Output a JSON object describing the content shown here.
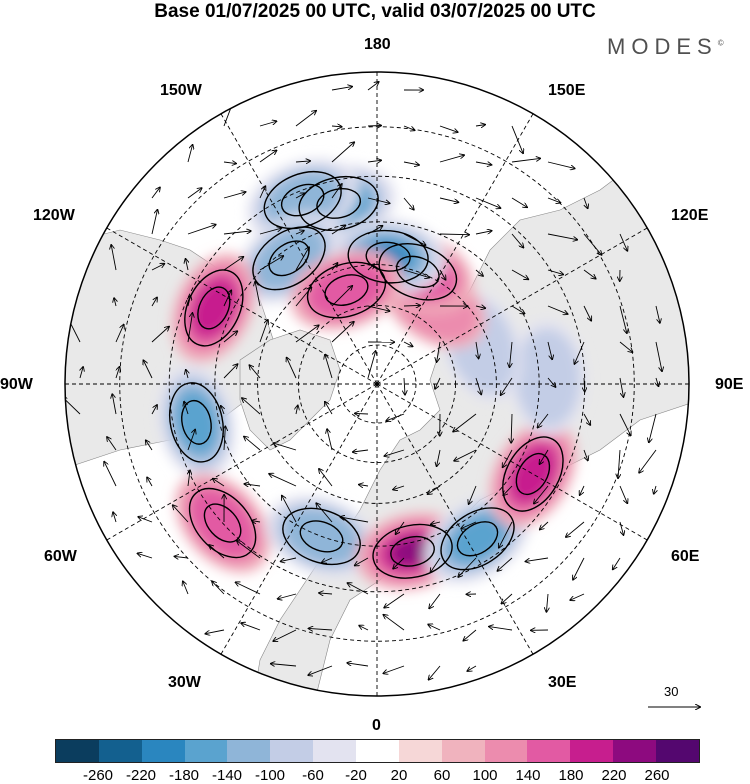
{
  "title": "Base 01/07/2025 00 UTC, valid 03/07/2025 00 UTC",
  "brand": "MODES",
  "brand_mark": "©",
  "longitude_labels": {
    "lon_180": "180",
    "lon_150e": "150E",
    "lon_120e": "120E",
    "lon_90e": "90E",
    "lon_60e": "60E",
    "lon_30e": "30E",
    "lon_0": "0",
    "lon_30w": "30W",
    "lon_60w": "60W",
    "lon_90w": "90W",
    "lon_120w": "120W",
    "lon_150w": "150W"
  },
  "reference_vector_label": "30",
  "colorbar": {
    "colors": [
      "#0b3d5e",
      "#13608f",
      "#2a86bf",
      "#5aa3cf",
      "#8fb5d8",
      "#c3cde6",
      "#e3e3f0",
      "#ffffff",
      "#f6d7d7",
      "#f0b3be",
      "#ec8cae",
      "#e25aa3",
      "#c71e8e",
      "#8d0a7f",
      "#54076f"
    ],
    "ticks": [
      "-260",
      "-220",
      "-180",
      "-140",
      "-100",
      "-60",
      "-20",
      "20",
      "60",
      "100",
      "140",
      "180",
      "220",
      "260"
    ]
  },
  "anomaly_centers": [
    {
      "lon": -168,
      "lat": 45,
      "value": -180
    },
    {
      "lon": -158,
      "lat": 42,
      "value": -140
    },
    {
      "lon": -145,
      "lat": 52,
      "value": -140
    },
    {
      "lon": -115,
      "lat": 46,
      "value": 180
    },
    {
      "lon": -78,
      "lat": 45,
      "value": -180
    },
    {
      "lon": -48,
      "lat": 40,
      "value": 140
    },
    {
      "lon": -20,
      "lat": 50,
      "value": -140
    },
    {
      "lon": 12,
      "lat": 48,
      "value": 220
    },
    {
      "lon": 33,
      "lat": 45,
      "value": -180
    },
    {
      "lon": 60,
      "lat": 46,
      "value": 180
    },
    {
      "lon": 92,
      "lat": 48,
      "value": -100
    },
    {
      "lon": 110,
      "lat": 62,
      "value": -100
    },
    {
      "lon": 145,
      "lat": 65,
      "value": 100
    },
    {
      "lon": 160,
      "lat": 60,
      "value": 140
    },
    {
      "lon": 175,
      "lat": 58,
      "value": -220
    },
    {
      "lon": -162,
      "lat": 65,
      "value": 140
    }
  ]
}
